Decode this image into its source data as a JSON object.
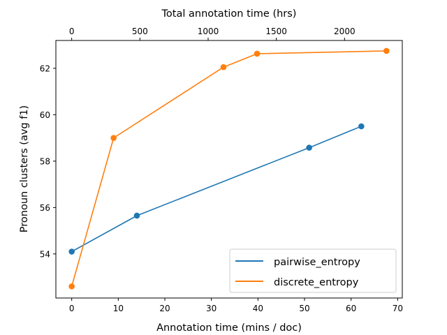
{
  "chart_data": {
    "type": "line",
    "title": "",
    "xlabel": "Annotation time (mins / doc)",
    "ylabel": "Pronoun clusters (avg f1)",
    "top_xlabel": "Total annotation time (hrs)",
    "xlim": [
      -3.4,
      71.0
    ],
    "ylim": [
      52.1,
      63.2
    ],
    "top_xlim": [
      -3.4,
      71.0
    ],
    "xticks": [
      0,
      10,
      20,
      30,
      40,
      50,
      60,
      70
    ],
    "yticks": [
      54,
      56,
      58,
      60,
      62
    ],
    "top_xticks": [
      {
        "label": "0",
        "at_bottom_x": 0.0
      },
      {
        "label": "500",
        "at_bottom_x": 14.65
      },
      {
        "label": "1000",
        "at_bottom_x": 29.3
      },
      {
        "label": "1500",
        "at_bottom_x": 43.95
      },
      {
        "label": "2000",
        "at_bottom_x": 58.6
      }
    ],
    "legend_position": "lower-right",
    "grid": false,
    "series": [
      {
        "name": "pairwise_entropy",
        "color": "#1f77b4",
        "x": [
          0,
          14,
          51,
          62.2
        ],
        "y": [
          54.1,
          55.65,
          58.58,
          59.5
        ]
      },
      {
        "name": "discrete_entropy",
        "color": "#ff7f0e",
        "x": [
          0,
          9,
          32.6,
          39.8,
          67.6
        ],
        "y": [
          52.6,
          59.0,
          62.05,
          62.63,
          62.75
        ]
      }
    ]
  }
}
